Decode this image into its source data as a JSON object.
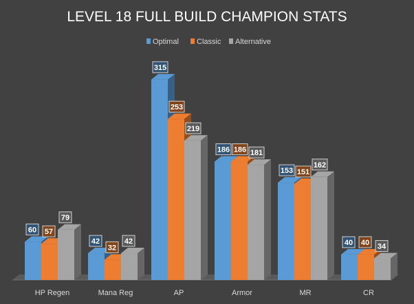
{
  "chart_data": {
    "type": "bar",
    "title": "LEVEL 18 FULL BUILD CHAMPION STATS",
    "categories": [
      "HP Regen",
      "Mana Reg",
      "AP",
      "Armor",
      "MR",
      "CR"
    ],
    "series": [
      {
        "name": "Optimal",
        "values": [
          60,
          42,
          315,
          186,
          153,
          40
        ],
        "color": "#5b9bd5"
      },
      {
        "name": "Classic",
        "values": [
          57,
          32,
          253,
          186,
          151,
          40
        ],
        "color": "#ed7d31"
      },
      {
        "name": "Alternative",
        "values": [
          79,
          42,
          219,
          181,
          162,
          34
        ],
        "color": "#a5a5a5"
      }
    ],
    "ylim": [
      0,
      330
    ],
    "grid": false,
    "legend_position": "top",
    "background_color": "#414141"
  }
}
